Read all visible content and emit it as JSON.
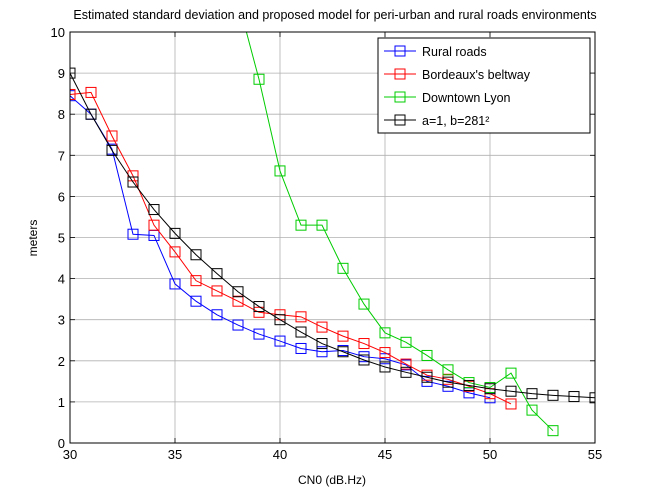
{
  "chart_data": {
    "type": "line",
    "title": "Estimated standard deviation and proposed model for peri-urban and rural roads environments",
    "xlabel": "CN0 (dB.Hz)",
    "ylabel": "meters",
    "xlim": [
      30,
      55
    ],
    "ylim": [
      0,
      10
    ],
    "xticks": [
      "30",
      "35",
      "40",
      "45",
      "50",
      "55"
    ],
    "yticks": [
      "0",
      "1",
      "2",
      "3",
      "4",
      "5",
      "6",
      "7",
      "8",
      "9",
      "10"
    ],
    "grid": true,
    "legend_position": "top-right",
    "series": [
      {
        "name": "Rural roads",
        "color": "#0000ff",
        "x": [
          30,
          31,
          32,
          33,
          34,
          35,
          36,
          37,
          38,
          39,
          40,
          41,
          42,
          43,
          44,
          45,
          46,
          47,
          48,
          49,
          50
        ],
        "y": [
          8.45,
          8.0,
          7.15,
          5.08,
          5.05,
          3.87,
          3.45,
          3.12,
          2.87,
          2.65,
          2.48,
          2.3,
          2.22,
          2.25,
          2.1,
          2.05,
          1.9,
          1.5,
          1.38,
          1.22,
          1.1
        ]
      },
      {
        "name": "Bordeaux's beltway",
        "color": "#ff0000",
        "x": [
          30,
          31,
          32,
          33,
          34,
          35,
          36,
          37,
          38,
          39,
          40,
          41,
          42,
          43,
          44,
          45,
          46,
          47,
          48,
          49,
          50,
          51
        ],
        "y": [
          8.48,
          8.53,
          7.47,
          6.5,
          5.3,
          4.65,
          3.95,
          3.7,
          3.45,
          3.18,
          3.12,
          3.07,
          2.82,
          2.6,
          2.42,
          2.2,
          1.92,
          1.65,
          1.55,
          1.38,
          1.2,
          0.95
        ]
      },
      {
        "name": "Downtown Lyon",
        "color": "#00cc00",
        "x": [
          38.4,
          39,
          40,
          41,
          42,
          43,
          44,
          45,
          46,
          47,
          48,
          49,
          50,
          51,
          52,
          53
        ],
        "y": [
          10,
          8.85,
          6.62,
          5.3,
          5.3,
          4.25,
          3.38,
          2.68,
          2.45,
          2.13,
          1.78,
          1.47,
          1.35,
          1.7,
          0.8,
          0.3
        ]
      },
      {
        "name": "a=1, b=281²",
        "color": "#000000",
        "x": [
          30,
          31,
          32,
          33,
          34,
          35,
          36,
          37,
          38,
          39,
          40,
          41,
          42,
          43,
          44,
          45,
          46,
          47,
          48,
          49,
          50,
          51,
          52,
          53,
          54,
          55
        ],
        "y": [
          9.0,
          8.0,
          7.12,
          6.35,
          5.68,
          5.1,
          4.58,
          4.12,
          3.68,
          3.32,
          3.0,
          2.7,
          2.42,
          2.22,
          2.02,
          1.85,
          1.72,
          1.6,
          1.48,
          1.4,
          1.32,
          1.26,
          1.2,
          1.16,
          1.13,
          1.1
        ]
      }
    ]
  }
}
